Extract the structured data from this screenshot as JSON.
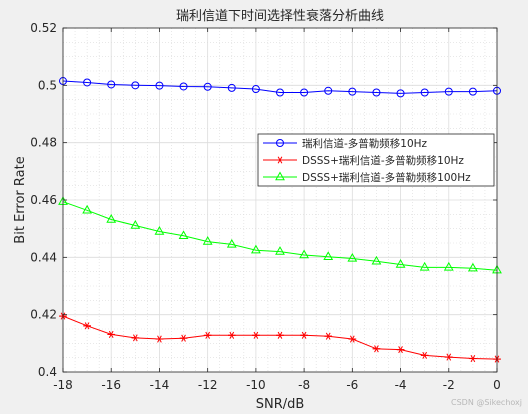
{
  "window": {
    "background": "#f0f0f0"
  },
  "watermark": "CSDN @Sikechoxj",
  "chart_data": {
    "type": "line",
    "title": "瑞利信道下时间选择性衰落分析曲线",
    "xlabel": "SNR/dB",
    "ylabel": "Bit Error Rate",
    "xlim": [
      -18,
      0
    ],
    "ylim": [
      0.4,
      0.52
    ],
    "xticks": [
      -18,
      -16,
      -14,
      -12,
      -10,
      -8,
      -6,
      -4,
      -2,
      0
    ],
    "yticks": [
      0.4,
      0.42,
      0.44,
      0.46,
      0.48,
      0.5,
      0.52
    ],
    "grid": true,
    "minor_grid": true,
    "legend_position": "right",
    "x": [
      -18,
      -17,
      -16,
      -15,
      -14,
      -13,
      -12,
      -11,
      -10,
      -9,
      -8,
      -7,
      -6,
      -5,
      -4,
      -3,
      -2,
      -1,
      0
    ],
    "series": [
      {
        "name": "瑞利信道-多普勒频移10Hz",
        "color": "#0000ff",
        "marker": "circle",
        "values": [
          0.5015,
          0.501,
          0.5003,
          0.5,
          0.4999,
          0.4996,
          0.4995,
          0.4991,
          0.4987,
          0.4975,
          0.4975,
          0.4981,
          0.4978,
          0.4975,
          0.4972,
          0.4975,
          0.4978,
          0.4978,
          0.4981
        ]
      },
      {
        "name": "DSSS+瑞利信道-多普勒频移10Hz",
        "color": "#ff0000",
        "marker": "star",
        "values": [
          0.4195,
          0.4161,
          0.4131,
          0.4119,
          0.4115,
          0.4118,
          0.4128,
          0.4128,
          0.4128,
          0.4128,
          0.4128,
          0.4125,
          0.4115,
          0.4081,
          0.4078,
          0.4058,
          0.4052,
          0.4047,
          0.4045
        ]
      },
      {
        "name": "DSSS+瑞利信道-多普勒频移100Hz",
        "color": "#00ff00",
        "marker": "triangle",
        "values": [
          0.4594,
          0.4564,
          0.4532,
          0.4511,
          0.449,
          0.4475,
          0.4455,
          0.4445,
          0.4425,
          0.442,
          0.4408,
          0.4402,
          0.4396,
          0.4386,
          0.4375,
          0.4365,
          0.4365,
          0.4362,
          0.4355
        ]
      }
    ]
  }
}
